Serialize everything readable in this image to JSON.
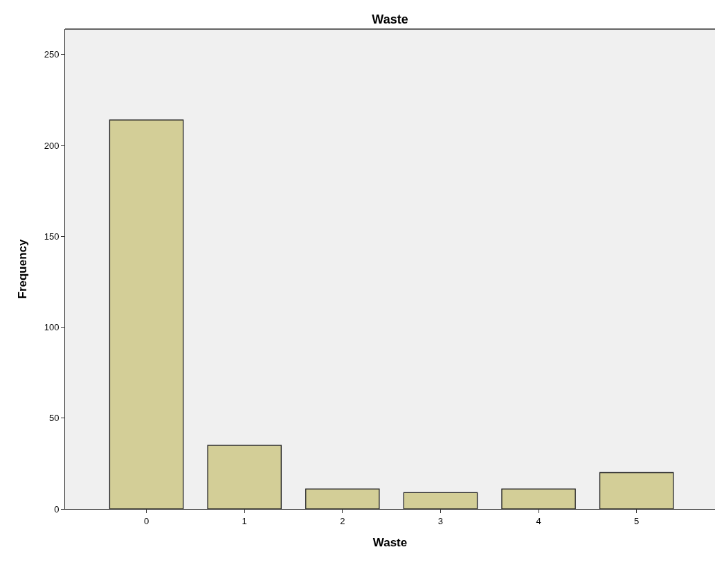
{
  "chart_data": {
    "type": "bar",
    "title": "Waste",
    "xlabel": "Waste",
    "ylabel": "Frequency",
    "categories": [
      "0",
      "1",
      "2",
      "3",
      "4",
      "5"
    ],
    "values": [
      214,
      35,
      11,
      9,
      11,
      20
    ],
    "color": "#d3ce97",
    "ylim": [
      0,
      264
    ],
    "yticks": [
      0,
      50,
      100,
      150,
      200,
      250
    ],
    "grid": false
  }
}
